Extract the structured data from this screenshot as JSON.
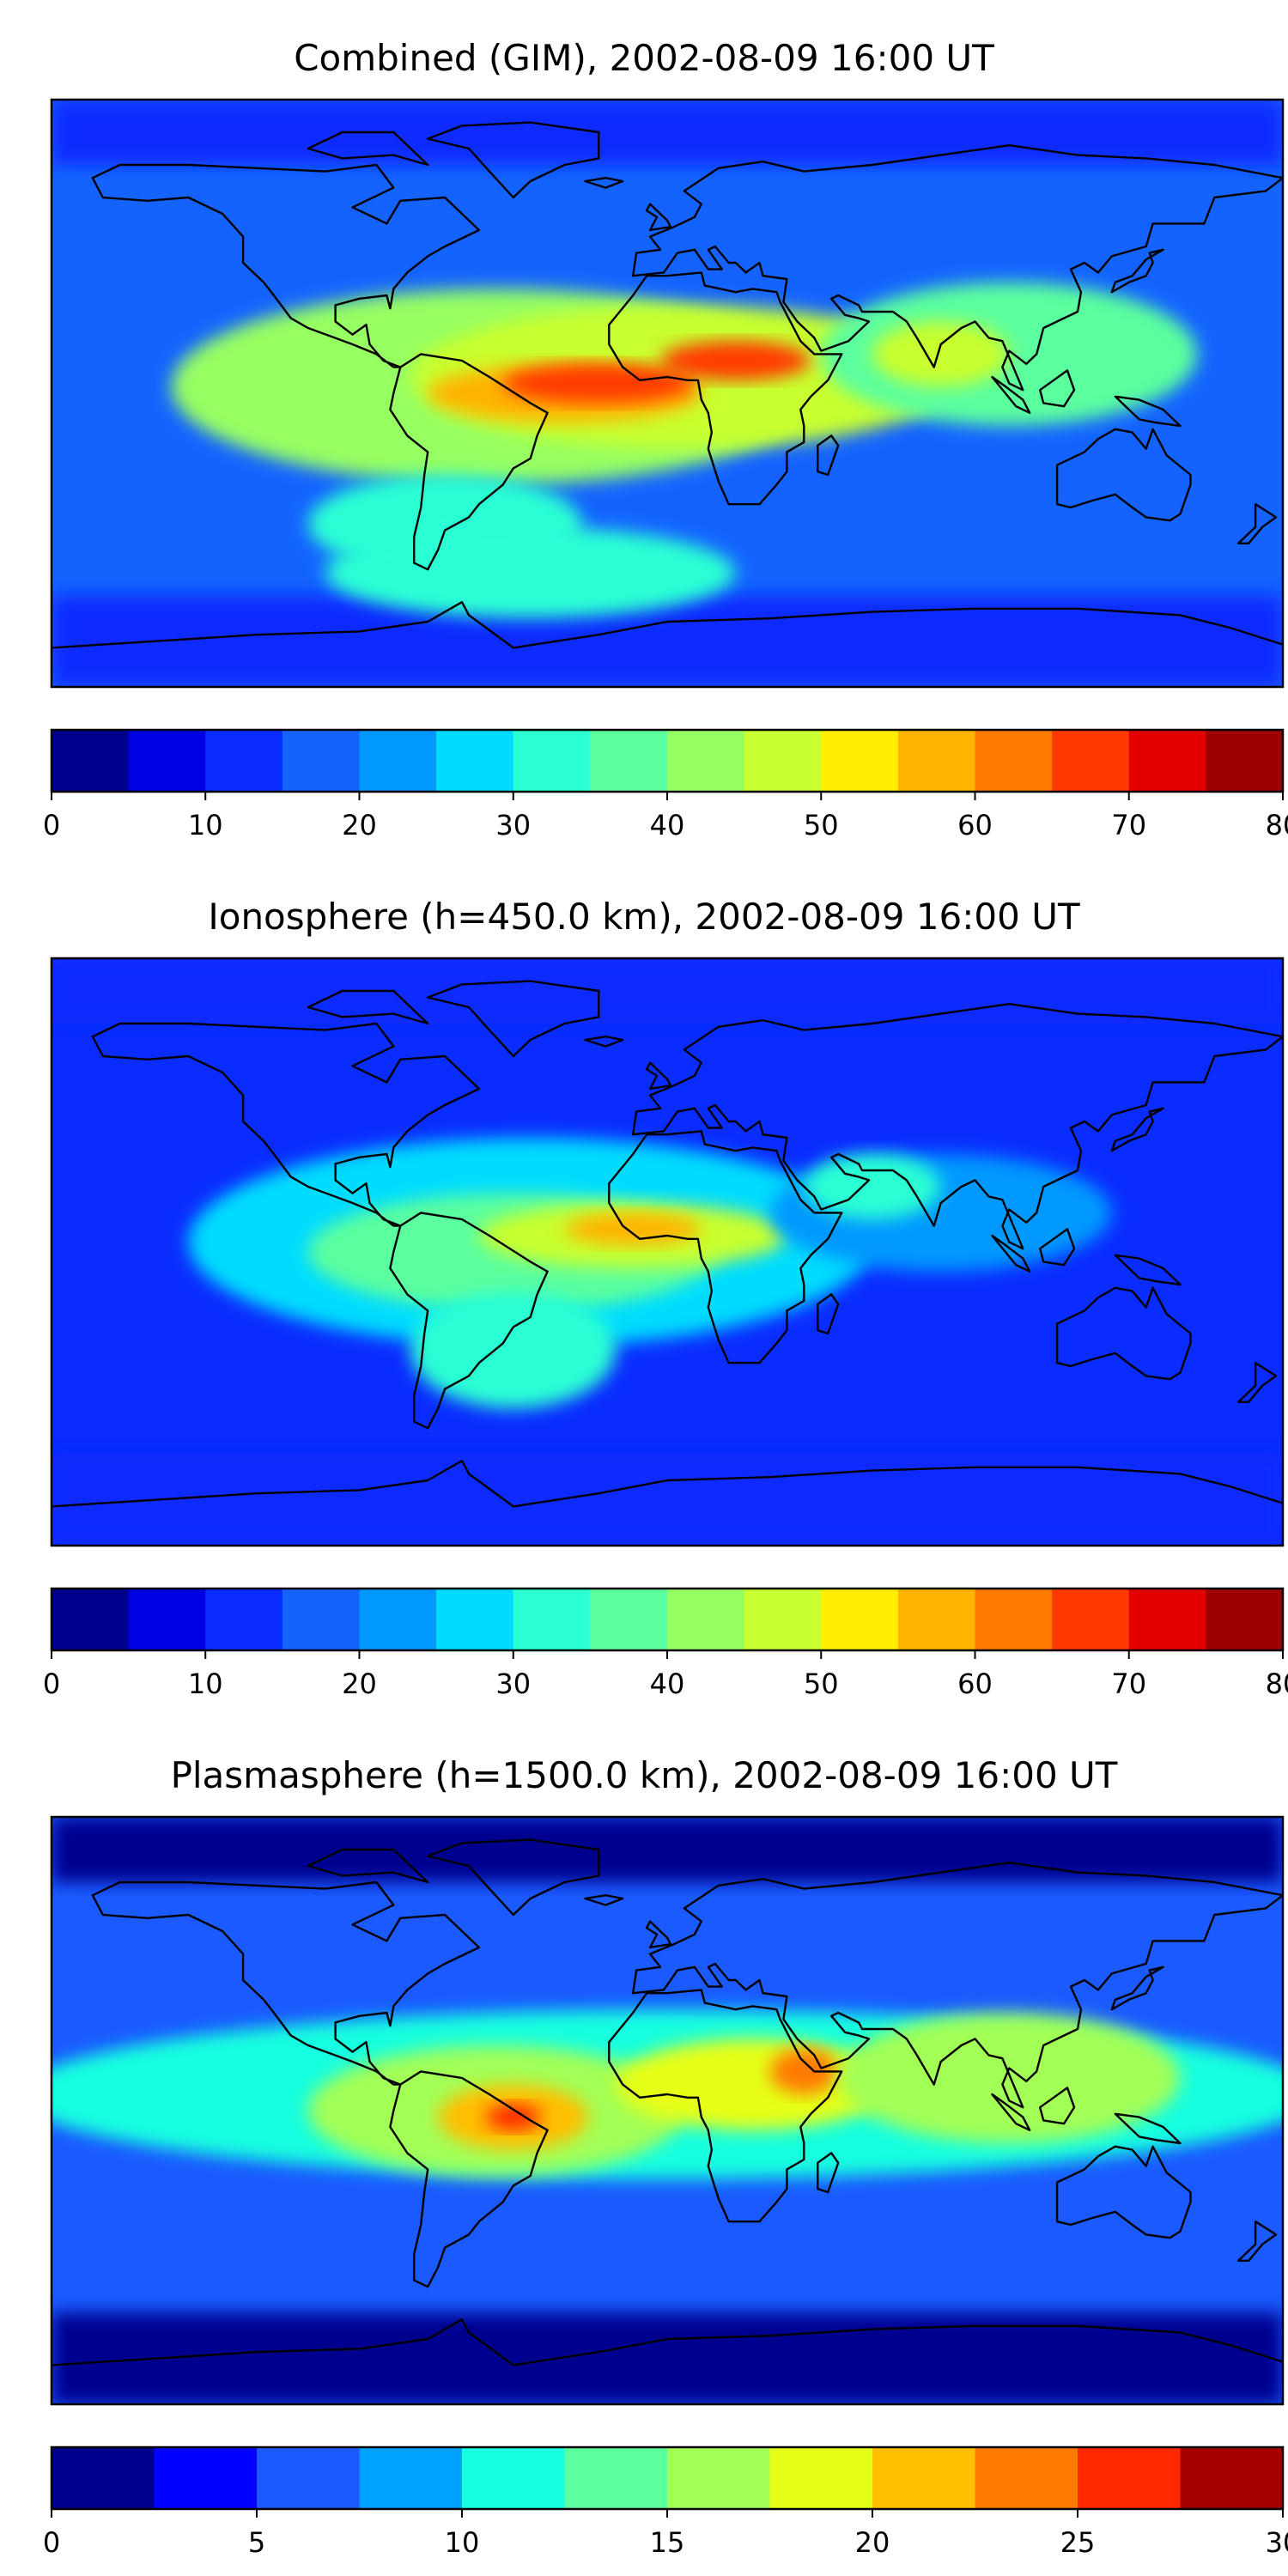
{
  "chart_data": [
    {
      "type": "heatmap",
      "subtype": "filled-contour map (world, equirectangular)",
      "title": "Combined (GIM), 2002-08-09 16:00 UT",
      "colorbar": {
        "ticks": [
          "0",
          "10",
          "20",
          "30",
          "40",
          "50",
          "60",
          "70",
          "80"
        ],
        "range": [
          0,
          80
        ],
        "step": 5,
        "colors": [
          "#00008f",
          "#0000e0",
          "#0a2cff",
          "#1463ff",
          "#0099ff",
          "#00dcff",
          "#2bffd4",
          "#5cff9e",
          "#96ff62",
          "#c8ff2e",
          "#ffee00",
          "#ffb400",
          "#ff7a00",
          "#ff3a00",
          "#e30000",
          "#9c0000"
        ]
      },
      "blobs": [
        {
          "lon": -50,
          "lat": 2,
          "rx": 95,
          "ry": 30,
          "value": 42
        },
        {
          "lon": 5,
          "lat": 5,
          "rx": 80,
          "ry": 22,
          "value": 45
        },
        {
          "lon": -30,
          "lat": 0,
          "rx": 40,
          "ry": 9,
          "value": 58
        },
        {
          "lon": -20,
          "lat": 3,
          "rx": 28,
          "ry": 6,
          "value": 68
        },
        {
          "lon": 20,
          "lat": 10,
          "rx": 22,
          "ry": 6,
          "value": 65
        },
        {
          "lon": 100,
          "lat": 12,
          "rx": 55,
          "ry": 22,
          "value": 38
        },
        {
          "lon": 80,
          "lat": 12,
          "rx": 20,
          "ry": 10,
          "value": 45
        },
        {
          "lon": -65,
          "lat": -40,
          "rx": 40,
          "ry": 15,
          "value": 34
        },
        {
          "lon": -40,
          "lat": -55,
          "rx": 60,
          "ry": 14,
          "value": 30
        }
      ],
      "background_value": 16,
      "polar_value": 12
    },
    {
      "type": "heatmap",
      "subtype": "filled-contour map (world, equirectangular)",
      "title": "Ionosphere  (h=450.0 km), 2002-08-09 16:00 UT",
      "colorbar": {
        "ticks": [
          "0",
          "10",
          "20",
          "30",
          "40",
          "50",
          "60",
          "70",
          "80"
        ],
        "range": [
          0,
          80
        ],
        "step": 5,
        "colors": [
          "#00008f",
          "#0000e0",
          "#0a2cff",
          "#1463ff",
          "#0099ff",
          "#00dcff",
          "#2bffd4",
          "#5cff9e",
          "#96ff62",
          "#c8ff2e",
          "#ffee00",
          "#ffb400",
          "#ff7a00",
          "#ff3a00",
          "#e30000",
          "#9c0000"
        ]
      },
      "blobs": [
        {
          "lon": -40,
          "lat": 3,
          "rx": 100,
          "ry": 32,
          "value": 28
        },
        {
          "lon": -45,
          "lat": 0,
          "rx": 60,
          "ry": 18,
          "value": 38
        },
        {
          "lon": -10,
          "lat": 5,
          "rx": 45,
          "ry": 10,
          "value": 46
        },
        {
          "lon": -10,
          "lat": 7,
          "rx": 20,
          "ry": 5,
          "value": 56
        },
        {
          "lon": 80,
          "lat": 12,
          "rx": 50,
          "ry": 18,
          "value": 24
        },
        {
          "lon": 60,
          "lat": 20,
          "rx": 20,
          "ry": 10,
          "value": 32
        },
        {
          "lon": -45,
          "lat": -30,
          "rx": 30,
          "ry": 18,
          "value": 30
        }
      ],
      "background_value": 12,
      "polar_value": 10
    },
    {
      "type": "heatmap",
      "subtype": "filled-contour map (world, equirectangular)",
      "title": "Plasmasphere (h=1500.0 km), 2002-08-09 16:00 UT",
      "colorbar": {
        "ticks": [
          "0",
          "5",
          "10",
          "15",
          "20",
          "25",
          "30"
        ],
        "range": [
          0,
          30
        ],
        "step": 2.5,
        "colors": [
          "#00008f",
          "#0000ff",
          "#1a5aff",
          "#00a2ff",
          "#15ffe0",
          "#5cff9e",
          "#a2ff56",
          "#e6ff18",
          "#ffbe00",
          "#ff7a00",
          "#ff2800",
          "#a80000"
        ]
      },
      "blobs": [
        {
          "lon": 0,
          "lat": 5,
          "rx": 190,
          "ry": 26,
          "value": 12
        },
        {
          "lon": -50,
          "lat": 0,
          "rx": 55,
          "ry": 20,
          "value": 17
        },
        {
          "lon": -45,
          "lat": -2,
          "rx": 22,
          "ry": 10,
          "value": 22
        },
        {
          "lon": -45,
          "lat": -2,
          "rx": 8,
          "ry": 4,
          "value": 26
        },
        {
          "lon": 25,
          "lat": 8,
          "rx": 40,
          "ry": 14,
          "value": 18
        },
        {
          "lon": 40,
          "lat": 12,
          "rx": 10,
          "ry": 7,
          "value": 23
        },
        {
          "lon": 100,
          "lat": 10,
          "rx": 50,
          "ry": 20,
          "value": 16
        }
      ],
      "background_value": 5,
      "polar_value": 2
    }
  ]
}
